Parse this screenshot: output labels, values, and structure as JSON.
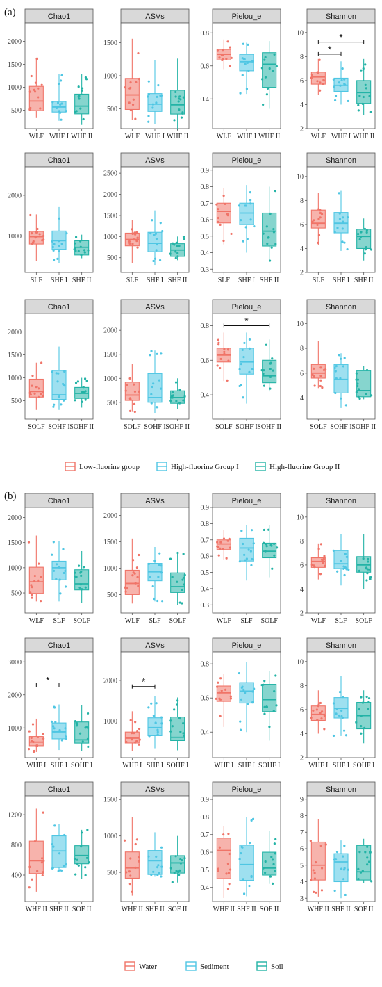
{
  "colors": {
    "c0": "#F07468",
    "c1": "#4FC6E3",
    "c2": "#23B3A6"
  },
  "parts": [
    {
      "label": "(a)",
      "legend": [
        "Low-fluorine group",
        "High-fluorine Group I",
        "High-fluorine Group II"
      ]
    },
    {
      "label": "(b)",
      "legend": [
        "Water",
        "Sediment",
        "Soil"
      ]
    }
  ],
  "chart_data": [
    {
      "type": "box",
      "title": "Chao1",
      "categories": [
        "WLF",
        "WHF I",
        "WHF II"
      ],
      "ylim": [
        100,
        2400
      ],
      "yticks": [
        500,
        1000,
        1500,
        2000
      ],
      "boxes": [
        {
          "q1": 490,
          "med": 700,
          "q3": 1020,
          "lo": 330,
          "hi": 1640
        },
        {
          "q1": 460,
          "med": 570,
          "q3": 690,
          "lo": 270,
          "hi": 1280
        },
        {
          "q1": 420,
          "med": 590,
          "q3": 850,
          "lo": 180,
          "hi": 1280
        }
      ],
      "sig": []
    },
    {
      "type": "box",
      "title": "ASVs",
      "categories": [
        "WLF",
        "WHF I",
        "WHF II"
      ],
      "ylim": [
        200,
        1800
      ],
      "yticks": [
        500,
        1000,
        1500
      ],
      "boxes": [
        {
          "q1": 490,
          "med": 710,
          "q3": 960,
          "lo": 330,
          "hi": 1560
        },
        {
          "q1": 460,
          "med": 570,
          "q3": 730,
          "lo": 270,
          "hi": 1240
        },
        {
          "q1": 420,
          "med": 560,
          "q3": 780,
          "lo": 180,
          "hi": 1260
        }
      ],
      "sig": []
    },
    {
      "type": "box",
      "title": "Pielou_e",
      "categories": [
        "WLF",
        "WHF I",
        "WHF II"
      ],
      "ylim": [
        0.22,
        0.86
      ],
      "yticks": [
        0.4,
        0.6,
        0.8
      ],
      "boxes": [
        {
          "q1": 0.635,
          "med": 0.67,
          "q3": 0.7,
          "lo": 0.58,
          "hi": 0.76
        },
        {
          "q1": 0.57,
          "med": 0.625,
          "q3": 0.67,
          "lo": 0.43,
          "hi": 0.74
        },
        {
          "q1": 0.47,
          "med": 0.61,
          "q3": 0.68,
          "lo": 0.34,
          "hi": 0.75
        }
      ],
      "sig": []
    },
    {
      "type": "box",
      "title": "Shannon",
      "categories": [
        "WLF",
        "WHF I",
        "WHF II"
      ],
      "ylim": [
        2,
        10.8
      ],
      "yticks": [
        2,
        4,
        6,
        8,
        10
      ],
      "boxes": [
        {
          "q1": 5.7,
          "med": 6.3,
          "q3": 6.7,
          "lo": 4.8,
          "hi": 7.8
        },
        {
          "q1": 5.1,
          "med": 5.6,
          "q3": 6.2,
          "lo": 4.0,
          "hi": 7.6
        },
        {
          "q1": 4.1,
          "med": 5.0,
          "q3": 6.0,
          "lo": 3.1,
          "hi": 7.8
        }
      ],
      "sig": [
        {
          "a": 0,
          "b": 1,
          "y": 8.2,
          "label": "*"
        },
        {
          "a": 0,
          "b": 2,
          "y": 9.2,
          "label": "*"
        }
      ]
    },
    {
      "type": "box",
      "title": "Chao1",
      "categories": [
        "SLF",
        "SHF I",
        "SHF II"
      ],
      "ylim": [
        100,
        2700
      ],
      "yticks": [
        1000,
        2000
      ],
      "boxes": [
        {
          "q1": 800,
          "med": 980,
          "q3": 1110,
          "lo": 380,
          "hi": 1530
        },
        {
          "q1": 670,
          "med": 880,
          "q3": 1120,
          "lo": 330,
          "hi": 1710
        },
        {
          "q1": 530,
          "med": 720,
          "q3": 880,
          "lo": 450,
          "hi": 1030
        }
      ],
      "sig": []
    },
    {
      "type": "box",
      "title": "ASVs",
      "categories": [
        "SLF",
        "SHF I",
        "SHF II"
      ],
      "ylim": [
        150,
        2650
      ],
      "yticks": [
        500,
        1000,
        1500,
        2000,
        2500
      ],
      "boxes": [
        {
          "q1": 780,
          "med": 930,
          "q3": 1080,
          "lo": 370,
          "hi": 1400
        },
        {
          "q1": 640,
          "med": 840,
          "q3": 1100,
          "lo": 330,
          "hi": 1620
        },
        {
          "q1": 530,
          "med": 680,
          "q3": 830,
          "lo": 440,
          "hi": 1000
        }
      ],
      "sig": []
    },
    {
      "type": "box",
      "title": "Pielou_e",
      "categories": [
        "SLF",
        "SHF I",
        "SHF II"
      ],
      "ylim": [
        0.28,
        0.92
      ],
      "yticks": [
        0.3,
        0.4,
        0.5,
        0.6,
        0.7,
        0.8,
        0.9
      ],
      "boxes": [
        {
          "q1": 0.58,
          "med": 0.65,
          "q3": 0.7,
          "lo": 0.45,
          "hi": 0.79
        },
        {
          "q1": 0.57,
          "med": 0.64,
          "q3": 0.7,
          "lo": 0.4,
          "hi": 0.81
        },
        {
          "q1": 0.44,
          "med": 0.53,
          "q3": 0.64,
          "lo": 0.35,
          "hi": 0.8
        }
      ],
      "sig": []
    },
    {
      "type": "box",
      "title": "Shannon",
      "categories": [
        "SLF",
        "SHF I",
        "SHF II"
      ],
      "ylim": [
        2,
        10.8
      ],
      "yticks": [
        2,
        4,
        6,
        8,
        10
      ],
      "boxes": [
        {
          "q1": 5.7,
          "med": 6.1,
          "q3": 7.2,
          "lo": 4.3,
          "hi": 8.6
        },
        {
          "q1": 5.3,
          "med": 6.1,
          "q3": 7.0,
          "lo": 3.8,
          "hi": 8.8
        },
        {
          "q1": 4.0,
          "med": 5.0,
          "q3": 5.6,
          "lo": 3.0,
          "hi": 6.5
        }
      ],
      "sig": []
    },
    {
      "type": "box",
      "title": "Chao1",
      "categories": [
        "SOLF",
        "SOHF I",
        "SOHF II"
      ],
      "ylim": [
        100,
        2400
      ],
      "yticks": [
        500,
        1000,
        1500,
        2000
      ],
      "boxes": [
        {
          "q1": 580,
          "med": 700,
          "q3": 970,
          "lo": 300,
          "hi": 1330
        },
        {
          "q1": 530,
          "med": 630,
          "q3": 1160,
          "lo": 300,
          "hi": 1680
        },
        {
          "q1": 550,
          "med": 660,
          "q3": 790,
          "lo": 350,
          "hi": 1000
        }
      ],
      "sig": []
    },
    {
      "type": "box",
      "title": "ASVs",
      "categories": [
        "SOLF",
        "SOHF I",
        "SOHF II"
      ],
      "ylim": [
        150,
        2350
      ],
      "yticks": [
        500,
        1000,
        1500,
        2000
      ],
      "boxes": [
        {
          "q1": 540,
          "med": 650,
          "q3": 920,
          "lo": 300,
          "hi": 1300
        },
        {
          "q1": 500,
          "med": 600,
          "q3": 1100,
          "lo": 280,
          "hi": 1580
        },
        {
          "q1": 480,
          "med": 600,
          "q3": 740,
          "lo": 360,
          "hi": 1000
        }
      ],
      "sig": []
    },
    {
      "type": "box",
      "title": "Pielou_e",
      "categories": [
        "SOLF",
        "SOHF I",
        "SOHF II"
      ],
      "ylim": [
        0.26,
        0.87
      ],
      "yticks": [
        0.4,
        0.6,
        0.8
      ],
      "boxes": [
        {
          "q1": 0.59,
          "med": 0.63,
          "q3": 0.67,
          "lo": 0.48,
          "hi": 0.76
        },
        {
          "q1": 0.52,
          "med": 0.59,
          "q3": 0.67,
          "lo": 0.35,
          "hi": 0.76
        },
        {
          "q1": 0.47,
          "med": 0.51,
          "q3": 0.6,
          "lo": 0.42,
          "hi": 0.72
        }
      ],
      "sig": [
        {
          "a": 0,
          "b": 2,
          "y": 0.8,
          "label": "*"
        }
      ]
    },
    {
      "type": "box",
      "title": "Shannon",
      "categories": [
        "SOLF",
        "SOHF I",
        "SOHF II"
      ],
      "ylim": [
        2.3,
        10.8
      ],
      "yticks": [
        4,
        6,
        8,
        10
      ],
      "boxes": [
        {
          "q1": 5.6,
          "med": 6.0,
          "q3": 6.7,
          "lo": 4.8,
          "hi": 8.6
        },
        {
          "q1": 4.4,
          "med": 5.5,
          "q3": 6.7,
          "lo": 3.2,
          "hi": 7.6
        },
        {
          "q1": 4.1,
          "med": 4.6,
          "q3": 6.2,
          "lo": 3.9,
          "hi": 6.6
        }
      ],
      "sig": []
    },
    {
      "type": "box",
      "title": "Chao1",
      "categories": [
        "WLF",
        "SLF",
        "SOLF"
      ],
      "ylim": [
        100,
        2200
      ],
      "yticks": [
        500,
        1000,
        1500,
        2000
      ],
      "boxes": [
        {
          "q1": 490,
          "med": 720,
          "q3": 1010,
          "lo": 330,
          "hi": 1640
        },
        {
          "q1": 760,
          "med": 1000,
          "q3": 1130,
          "lo": 330,
          "hi": 1530
        },
        {
          "q1": 560,
          "med": 680,
          "q3": 960,
          "lo": 300,
          "hi": 1330
        }
      ],
      "sig": []
    },
    {
      "type": "box",
      "title": "ASVs",
      "categories": [
        "WLF",
        "SLF",
        "SOLF"
      ],
      "ylim": [
        150,
        2150
      ],
      "yticks": [
        500,
        1000,
        1500,
        2000
      ],
      "boxes": [
        {
          "q1": 500,
          "med": 710,
          "q3": 960,
          "lo": 330,
          "hi": 1560
        },
        {
          "q1": 760,
          "med": 930,
          "q3": 1090,
          "lo": 370,
          "hi": 1400
        },
        {
          "q1": 540,
          "med": 650,
          "q3": 910,
          "lo": 300,
          "hi": 1300
        }
      ],
      "sig": []
    },
    {
      "type": "box",
      "title": "Pielou_e",
      "categories": [
        "WLF",
        "SLF",
        "SOLF"
      ],
      "ylim": [
        0.25,
        0.9
      ],
      "yticks": [
        0.3,
        0.4,
        0.5,
        0.6,
        0.7,
        0.8,
        0.9
      ],
      "boxes": [
        {
          "q1": 0.64,
          "med": 0.675,
          "q3": 0.7,
          "lo": 0.58,
          "hi": 0.76
        },
        {
          "q1": 0.57,
          "med": 0.65,
          "q3": 0.71,
          "lo": 0.45,
          "hi": 0.79
        },
        {
          "q1": 0.59,
          "med": 0.63,
          "q3": 0.68,
          "lo": 0.47,
          "hi": 0.79
        }
      ],
      "sig": []
    },
    {
      "type": "box",
      "title": "Shannon",
      "categories": [
        "WLF",
        "SLF",
        "SOLF"
      ],
      "ylim": [
        2,
        10.8
      ],
      "yticks": [
        2,
        4,
        6,
        8,
        10
      ],
      "boxes": [
        {
          "q1": 5.8,
          "med": 6.3,
          "q3": 6.6,
          "lo": 4.8,
          "hi": 7.8
        },
        {
          "q1": 5.7,
          "med": 6.1,
          "q3": 7.2,
          "lo": 4.3,
          "hi": 8.6
        },
        {
          "q1": 5.4,
          "med": 6.0,
          "q3": 6.7,
          "lo": 4.0,
          "hi": 8.6
        }
      ],
      "sig": []
    },
    {
      "type": "box",
      "title": "Chao1",
      "categories": [
        "WHF I",
        "SHF I",
        "SOHF I"
      ],
      "ylim": [
        100,
        3300
      ],
      "yticks": [
        1000,
        2000,
        3000
      ],
      "boxes": [
        {
          "q1": 460,
          "med": 570,
          "q3": 740,
          "lo": 270,
          "hi": 1280
        },
        {
          "q1": 670,
          "med": 880,
          "q3": 1150,
          "lo": 330,
          "hi": 1710
        },
        {
          "q1": 540,
          "med": 640,
          "q3": 1180,
          "lo": 300,
          "hi": 1680
        }
      ],
      "sig": [
        {
          "a": 0,
          "b": 1,
          "y": 2300,
          "label": "*"
        }
      ]
    },
    {
      "type": "box",
      "title": "ASVs",
      "categories": [
        "WHF I",
        "SHF I",
        "SOHF I"
      ],
      "ylim": [
        100,
        2700
      ],
      "yticks": [
        1000,
        2000
      ],
      "boxes": [
        {
          "q1": 460,
          "med": 580,
          "q3": 730,
          "lo": 270,
          "hi": 1240
        },
        {
          "q1": 640,
          "med": 840,
          "q3": 1080,
          "lo": 330,
          "hi": 1620
        },
        {
          "q1": 520,
          "med": 600,
          "q3": 1100,
          "lo": 280,
          "hi": 1580
        }
      ],
      "sig": [
        {
          "a": 0,
          "b": 1,
          "y": 1850,
          "label": "*"
        }
      ]
    },
    {
      "type": "box",
      "title": "Pielou_e",
      "categories": [
        "WHF I",
        "SHF I",
        "SOHF I"
      ],
      "ylim": [
        0.25,
        0.87
      ],
      "yticks": [
        0.4,
        0.6,
        0.8
      ],
      "boxes": [
        {
          "q1": 0.58,
          "med": 0.63,
          "q3": 0.67,
          "lo": 0.43,
          "hi": 0.74
        },
        {
          "q1": 0.57,
          "med": 0.64,
          "q3": 0.69,
          "lo": 0.4,
          "hi": 0.81
        },
        {
          "q1": 0.52,
          "med": 0.59,
          "q3": 0.68,
          "lo": 0.35,
          "hi": 0.76
        }
      ],
      "sig": []
    },
    {
      "type": "box",
      "title": "Shannon",
      "categories": [
        "WHF I",
        "SHF I",
        "SOHF I"
      ],
      "ylim": [
        2,
        10.8
      ],
      "yticks": [
        2,
        4,
        6,
        8,
        10
      ],
      "boxes": [
        {
          "q1": 5.1,
          "med": 5.6,
          "q3": 6.3,
          "lo": 4.0,
          "hi": 7.6
        },
        {
          "q1": 5.3,
          "med": 6.1,
          "q3": 7.0,
          "lo": 3.8,
          "hi": 8.8
        },
        {
          "q1": 4.4,
          "med": 5.5,
          "q3": 6.6,
          "lo": 3.2,
          "hi": 7.6
        }
      ],
      "sig": []
    },
    {
      "type": "box",
      "title": "Chao1",
      "categories": [
        "WHF II",
        "SHF II",
        "SOF II"
      ],
      "ylim": [
        50,
        1450
      ],
      "yticks": [
        400,
        800,
        1200
      ],
      "boxes": [
        {
          "q1": 420,
          "med": 590,
          "q3": 850,
          "lo": 180,
          "hi": 1280
        },
        {
          "q1": 500,
          "med": 720,
          "q3": 920,
          "lo": 450,
          "hi": 1080
        },
        {
          "q1": 550,
          "med": 660,
          "q3": 790,
          "lo": 350,
          "hi": 1000
        }
      ],
      "sig": []
    },
    {
      "type": "box",
      "title": "ASVs",
      "categories": [
        "WHF II",
        "SHF II",
        "SOF II"
      ],
      "ylim": [
        100,
        1550
      ],
      "yticks": [
        500,
        1000,
        1500
      ],
      "boxes": [
        {
          "q1": 420,
          "med": 560,
          "q3": 780,
          "lo": 180,
          "hi": 1260
        },
        {
          "q1": 470,
          "med": 660,
          "q3": 800,
          "lo": 440,
          "hi": 1050
        },
        {
          "q1": 490,
          "med": 630,
          "q3": 730,
          "lo": 360,
          "hi": 1000
        }
      ],
      "sig": []
    },
    {
      "type": "box",
      "title": "Pielou_e",
      "categories": [
        "WHF II",
        "SHF II",
        "SOF II"
      ],
      "ylim": [
        0.32,
        0.92
      ],
      "yticks": [
        0.4,
        0.5,
        0.6,
        0.7,
        0.8,
        0.9
      ],
      "boxes": [
        {
          "q1": 0.45,
          "med": 0.61,
          "q3": 0.68,
          "lo": 0.34,
          "hi": 0.75
        },
        {
          "q1": 0.44,
          "med": 0.53,
          "q3": 0.64,
          "lo": 0.35,
          "hi": 0.8
        },
        {
          "q1": 0.47,
          "med": 0.51,
          "q3": 0.6,
          "lo": 0.42,
          "hi": 0.72
        }
      ],
      "sig": []
    },
    {
      "type": "box",
      "title": "Shannon",
      "categories": [
        "WHF II",
        "SHF II",
        "SOF II"
      ],
      "ylim": [
        2.8,
        9.2
      ],
      "yticks": [
        3,
        4,
        5,
        6,
        7,
        8,
        9
      ],
      "boxes": [
        {
          "q1": 4.1,
          "med": 5.0,
          "q3": 6.4,
          "lo": 3.1,
          "hi": 7.8
        },
        {
          "q1": 4.0,
          "med": 5.2,
          "q3": 5.7,
          "lo": 3.0,
          "hi": 6.5
        },
        {
          "q1": 4.1,
          "med": 4.6,
          "q3": 6.2,
          "lo": 3.9,
          "hi": 6.6
        }
      ],
      "sig": []
    }
  ]
}
